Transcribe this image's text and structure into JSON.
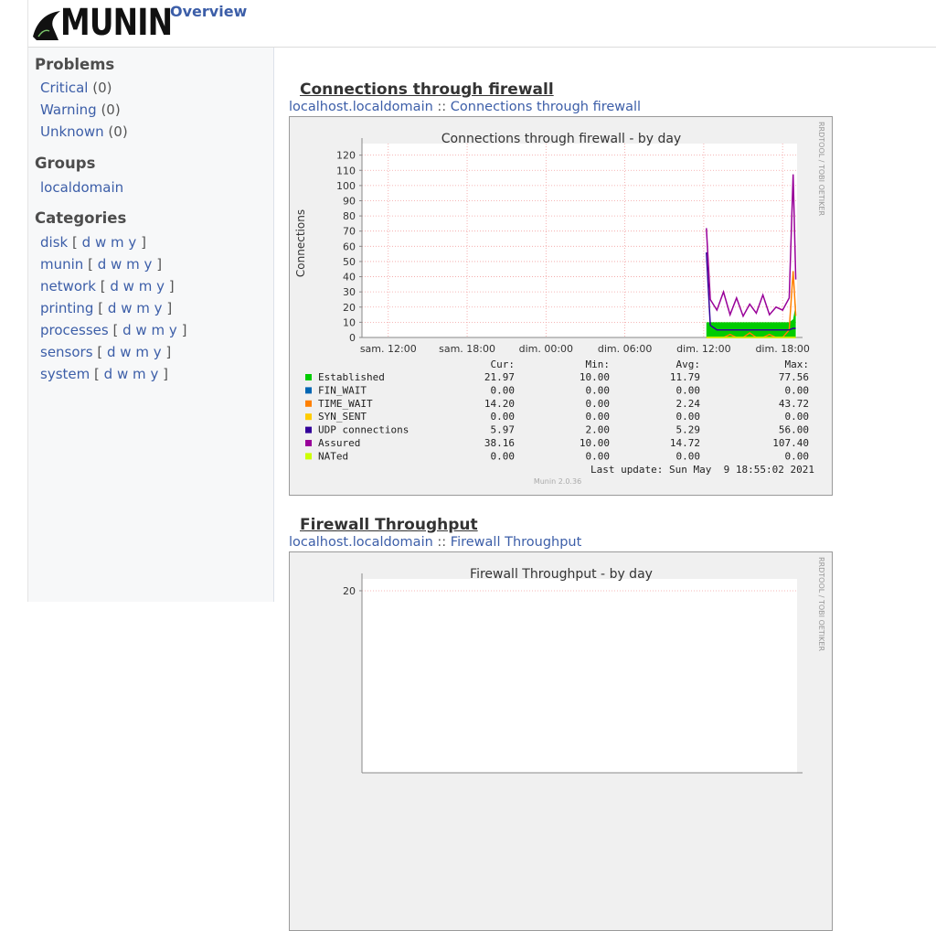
{
  "header": {
    "logo": "MUNIN",
    "nav": "Overview"
  },
  "sidebar": {
    "period_brackets": [
      "[",
      "]"
    ],
    "problems": {
      "title": "Problems",
      "items": [
        {
          "label": "Critical",
          "count": "(0)"
        },
        {
          "label": "Warning",
          "count": "(0)"
        },
        {
          "label": "Unknown",
          "count": "(0)"
        }
      ]
    },
    "groups": {
      "title": "Groups",
      "items": [
        "localdomain"
      ]
    },
    "categories": {
      "title": "Categories",
      "items": [
        {
          "label": "disk",
          "periods": [
            "d",
            "w",
            "m",
            "y"
          ]
        },
        {
          "label": "munin",
          "periods": [
            "d",
            "w",
            "m",
            "y"
          ]
        },
        {
          "label": "network",
          "periods": [
            "d",
            "w",
            "m",
            "y"
          ]
        },
        {
          "label": "printing",
          "periods": [
            "d",
            "w",
            "m",
            "y"
          ]
        },
        {
          "label": "processes",
          "periods": [
            "d",
            "w",
            "m",
            "y"
          ]
        },
        {
          "label": "sensors",
          "periods": [
            "d",
            "w",
            "m",
            "y"
          ]
        },
        {
          "label": "system",
          "periods": [
            "d",
            "w",
            "m",
            "y"
          ]
        }
      ]
    }
  },
  "graphs": [
    {
      "heading": "Connections through firewall",
      "breadcrumb": {
        "host": "localhost.localdomain",
        "separator": "::",
        "name": "Connections through firewall"
      },
      "chart_data": {
        "type": "line",
        "title": "Connections through firewall - by day",
        "y_label": "Connections",
        "watermark": "RRDTOOL / TOBI OETIKER",
        "generator": "Munin 2.0.36",
        "last_update": "Last update: Sun May  9 18:55:02 2021",
        "legend_columns": [
          "Cur:",
          "Min:",
          "Avg:",
          "Max:"
        ],
        "x": [
          36.2,
          36.5,
          37,
          37.5,
          38,
          38.5,
          39,
          39.5,
          40,
          40.5,
          41,
          41.5,
          42,
          42.5,
          42.8,
          43
        ],
        "series": [
          {
            "name": "Established",
            "color": "#00cc00",
            "values": [
              10,
              10,
              10,
              10,
              10,
              10,
              10,
              10,
              10,
              10,
              10,
              10,
              10,
              10,
              12,
              21.97
            ],
            "stats": [
              "21.97",
              "10.00",
              "11.79",
              "77.56"
            ]
          },
          {
            "name": "FIN_WAIT",
            "color": "#0066b3",
            "values": [
              0,
              0,
              0,
              0,
              0,
              0,
              0,
              0,
              0,
              0,
              0,
              0,
              0,
              0,
              0,
              0
            ],
            "stats": [
              "0.00",
              "0.00",
              "0.00",
              "0.00"
            ]
          },
          {
            "name": "TIME_WAIT",
            "color": "#ff8000",
            "values": [
              0,
              0,
              0,
              0,
              2,
              0,
              0,
              3,
              0,
              0,
              2,
              0,
              0,
              5,
              43.72,
              14.2
            ],
            "stats": [
              "14.20",
              "0.00",
              "2.24",
              "43.72"
            ]
          },
          {
            "name": "SYN_SENT",
            "color": "#ffcc00",
            "values": [
              0,
              0,
              0,
              0,
              0,
              0,
              0,
              0,
              0,
              0,
              0,
              0,
              0,
              0,
              0,
              0
            ],
            "stats": [
              "0.00",
              "0.00",
              "0.00",
              "0.00"
            ]
          },
          {
            "name": "UDP connections",
            "color": "#330099",
            "values": [
              56,
              8,
              5,
              5,
              5,
              5,
              5,
              5,
              5,
              5,
              5,
              5,
              5,
              5,
              6,
              5.97
            ],
            "stats": [
              "5.97",
              "2.00",
              "5.29",
              "56.00"
            ]
          },
          {
            "name": "Assured",
            "color": "#990099",
            "values": [
              72,
              25,
              18,
              30,
              15,
              26,
              14,
              22,
              16,
              28,
              15,
              20,
              18,
              26,
              107.4,
              38.16
            ],
            "stats": [
              "38.16",
              "10.00",
              "14.72",
              "107.40"
            ]
          },
          {
            "name": "NATed",
            "color": "#ccff00",
            "values": [
              0,
              0,
              0,
              0,
              0,
              0,
              0,
              0,
              0,
              0,
              0,
              0,
              0,
              0,
              0,
              0
            ],
            "stats": [
              "0.00",
              "0.00",
              "0.00",
              "0.00"
            ]
          }
        ],
        "xlim": [
          10,
          43.1
        ],
        "xticks": [
          {
            "value": 12,
            "label": "sam. 12:00"
          },
          {
            "value": 18,
            "label": "sam. 18:00"
          },
          {
            "value": 24,
            "label": "dim. 00:00"
          },
          {
            "value": 30,
            "label": "dim. 06:00"
          },
          {
            "value": 36,
            "label": "dim. 12:00"
          },
          {
            "value": 42,
            "label": "dim. 18:00"
          }
        ],
        "ylim": [
          0,
          124
        ],
        "yticks": [
          0,
          10,
          20,
          30,
          40,
          50,
          60,
          70,
          80,
          90,
          100,
          110,
          120
        ],
        "grid": true
      }
    },
    {
      "heading": "Firewall Throughput",
      "breadcrumb": {
        "host": "localhost.localdomain",
        "separator": "::",
        "name": "Firewall Throughput"
      },
      "chart_data": {
        "type": "line",
        "title": "Firewall Throughput - by day",
        "watermark": "RRDTOOL / TOBI OETIKER",
        "ylim": [
          0,
          20.7
        ],
        "yticks": [
          20
        ],
        "grid": true
      }
    }
  ]
}
